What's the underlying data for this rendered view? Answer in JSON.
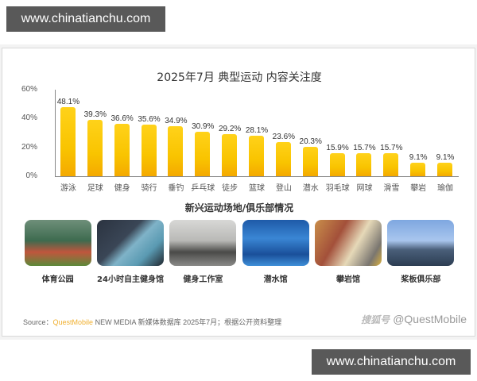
{
  "watermark": {
    "top": "www.chinatianchu.com",
    "bottom": "www.chinatianchu.com"
  },
  "chart": {
    "title": "2025年7月 典型运动 内容关注度",
    "yticks": [
      "60%",
      "40%",
      "20%",
      "0%"
    ]
  },
  "chart_data": {
    "type": "bar",
    "title": "2025年7月 典型运动 内容关注度",
    "xlabel": "",
    "ylabel": "",
    "ylim": [
      0,
      60
    ],
    "yticks": [
      "0%",
      "20%",
      "40%",
      "60%"
    ],
    "grid": false,
    "categories": [
      "游泳",
      "足球",
      "健身",
      "骑行",
      "垂钓",
      "乒乓球",
      "徒步",
      "篮球",
      "登山",
      "潜水",
      "羽毛球",
      "网球",
      "滑雪",
      "攀岩",
      "瑜伽"
    ],
    "values": [
      48.1,
      39.3,
      36.6,
      35.6,
      34.9,
      30.9,
      29.2,
      28.1,
      23.6,
      20.3,
      15.9,
      15.7,
      15.7,
      9.1,
      9.1
    ],
    "labels": [
      "48.1%",
      "39.3%",
      "36.6%",
      "35.6%",
      "34.9%",
      "30.9%",
      "29.2%",
      "28.1%",
      "23.6%",
      "20.3%",
      "15.9%",
      "15.7%",
      "15.7%",
      "9.1%",
      "9.1%"
    ],
    "bar_color": "#f9c400"
  },
  "venues": {
    "title": "新兴运动场地/俱乐部情况",
    "items": [
      {
        "label": "体育公园",
        "image": "sports-park-photo"
      },
      {
        "label": "24小时自主健身馆",
        "image": "24h-gym-photo"
      },
      {
        "label": "健身工作室",
        "image": "fitness-studio-photo"
      },
      {
        "label": "潜水馆",
        "image": "diving-hall-photo"
      },
      {
        "label": "攀岩馆",
        "image": "climbing-gym-photo"
      },
      {
        "label": "桨板俱乐部",
        "image": "paddleboard-club-photo"
      }
    ]
  },
  "footer": {
    "source_prefix": "Source：",
    "source_brand": "QuestMobile",
    "source_rest": " NEW MEDIA 新媒体数据库 2025年7月；根据公开资料整理",
    "platform_logo": "搜狐号",
    "handle": "@QuestMobile"
  }
}
